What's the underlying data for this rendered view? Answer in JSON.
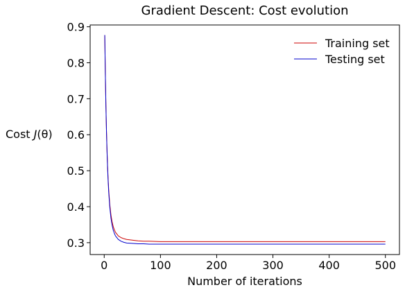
{
  "chart_data": {
    "type": "line",
    "title": "Gradient Descent: Cost evolution",
    "xlabel": "Number of iterations",
    "ylabel_prefix": "Cost ",
    "ylabel_j": "J",
    "ylabel_theta": "(θ)",
    "xlim": [
      -25,
      525
    ],
    "ylim": [
      0.267,
      0.905
    ],
    "xticks": [
      0,
      100,
      200,
      300,
      400,
      500
    ],
    "xtick_labels": [
      "0",
      "100",
      "200",
      "300",
      "400",
      "500"
    ],
    "yticks": [
      0.3,
      0.4,
      0.5,
      0.6,
      0.7,
      0.8,
      0.9
    ],
    "ytick_labels": [
      "0.3",
      "0.4",
      "0.5",
      "0.6",
      "0.7",
      "0.8",
      "0.9"
    ],
    "grid": false,
    "legend_position": "top-right",
    "series": [
      {
        "name": "Training set",
        "color": "#cc0000",
        "x": [
          1,
          2,
          3,
          4,
          5,
          6,
          7,
          8,
          10,
          12,
          14,
          16,
          18,
          20,
          25,
          30,
          35,
          40,
          50,
          60,
          70,
          80,
          100,
          120,
          150,
          200,
          250,
          300,
          350,
          400,
          450,
          500
        ],
        "y": [
          0.877,
          0.77,
          0.683,
          0.613,
          0.557,
          0.512,
          0.476,
          0.447,
          0.405,
          0.377,
          0.358,
          0.345,
          0.336,
          0.329,
          0.319,
          0.314,
          0.311,
          0.309,
          0.307,
          0.305,
          0.304,
          0.304,
          0.303,
          0.303,
          0.303,
          0.303,
          0.303,
          0.303,
          0.303,
          0.303,
          0.303,
          0.303
        ]
      },
      {
        "name": "Testing set",
        "color": "#0000cc",
        "x": [
          1,
          2,
          3,
          4,
          5,
          6,
          7,
          8,
          10,
          12,
          14,
          16,
          18,
          20,
          25,
          30,
          35,
          40,
          50,
          60,
          70,
          80,
          100,
          120,
          150,
          200,
          250,
          300,
          350,
          400,
          450,
          500
        ],
        "y": [
          0.877,
          0.769,
          0.681,
          0.61,
          0.553,
          0.507,
          0.47,
          0.44,
          0.397,
          0.368,
          0.349,
          0.335,
          0.326,
          0.319,
          0.309,
          0.304,
          0.301,
          0.299,
          0.298,
          0.297,
          0.297,
          0.296,
          0.296,
          0.296,
          0.296,
          0.296,
          0.296,
          0.296,
          0.296,
          0.296,
          0.296,
          0.296
        ]
      }
    ]
  }
}
